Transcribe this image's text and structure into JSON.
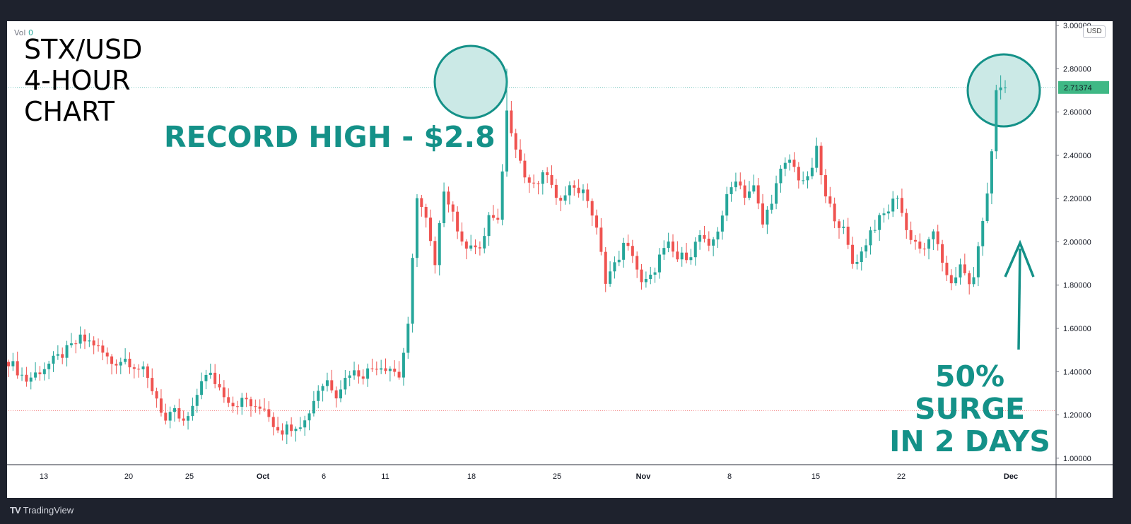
{
  "header": {
    "title_lines": [
      "STX/USD",
      "4-HOUR",
      "CHART"
    ],
    "vol_label": "Vol",
    "vol_value": "0"
  },
  "currency": "USD",
  "annotations": {
    "record_high": "RECORD HIGH - $2.8",
    "surge_line1": "50% SURGE",
    "surge_line2": "IN 2 DAYS"
  },
  "branding": {
    "logo": "TV",
    "name": "TradingView"
  },
  "colors": {
    "up": "#26a69a",
    "down": "#ef5350",
    "accent": "#149188",
    "last_price_bg": "#3fb885",
    "circle_fill": "#cbe9e6"
  },
  "chart_data": {
    "type": "candlestick",
    "yaxis": {
      "ticks": [
        "1.00000",
        "1.20000",
        "1.40000",
        "1.60000",
        "1.80000",
        "2.00000",
        "2.20000",
        "2.40000",
        "2.60000",
        "2.80000",
        "3.00000"
      ],
      "range": [
        0.97,
        3.02
      ]
    },
    "xaxis": {
      "ticks": [
        "13",
        "20",
        "25",
        "Oct",
        "6",
        "11",
        "18",
        "25",
        "Nov",
        "8",
        "15",
        "22",
        "Dec"
      ]
    },
    "last_price": "2.71374",
    "reference_line": 1.22,
    "path": [
      [
        0,
        1.45
      ],
      [
        4,
        1.36
      ],
      [
        8,
        1.42
      ],
      [
        12,
        1.48
      ],
      [
        16,
        1.55
      ],
      [
        19,
        1.53
      ],
      [
        23,
        1.44
      ],
      [
        26,
        1.46
      ],
      [
        30,
        1.4
      ],
      [
        33,
        1.28
      ],
      [
        35,
        1.17
      ],
      [
        37,
        1.21
      ],
      [
        39,
        1.16
      ],
      [
        41,
        1.22
      ],
      [
        43,
        1.37
      ],
      [
        45,
        1.38
      ],
      [
        48,
        1.3
      ],
      [
        50,
        1.25
      ],
      [
        53,
        1.27
      ],
      [
        55,
        1.22
      ],
      [
        57,
        1.24
      ],
      [
        59,
        1.16
      ],
      [
        61,
        1.13
      ],
      [
        63,
        1.15
      ],
      [
        66,
        1.17
      ],
      [
        69,
        1.32
      ],
      [
        71,
        1.36
      ],
      [
        73,
        1.3
      ],
      [
        76,
        1.4
      ],
      [
        79,
        1.39
      ],
      [
        82,
        1.43
      ],
      [
        85,
        1.42
      ],
      [
        87,
        1.38
      ],
      [
        89,
        1.6
      ],
      [
        91,
        2.22
      ],
      [
        93,
        2.1
      ],
      [
        95,
        1.88
      ],
      [
        97,
        2.25
      ],
      [
        99,
        2.14
      ],
      [
        101,
        1.98
      ],
      [
        103,
        2.0
      ],
      [
        105,
        1.95
      ],
      [
        107,
        2.12
      ],
      [
        109,
        2.08
      ],
      [
        111,
        2.6
      ],
      [
        113,
        2.45
      ],
      [
        115,
        2.3
      ],
      [
        117,
        2.25
      ],
      [
        120,
        2.32
      ],
      [
        122,
        2.18
      ],
      [
        124,
        2.24
      ],
      [
        126,
        2.26
      ],
      [
        129,
        2.2
      ],
      [
        131,
        2.05
      ],
      [
        133,
        1.83
      ],
      [
        135,
        1.89
      ],
      [
        137,
        1.98
      ],
      [
        139,
        1.95
      ],
      [
        141,
        1.8
      ],
      [
        143,
        1.83
      ],
      [
        145,
        1.93
      ],
      [
        147,
        1.98
      ],
      [
        149,
        1.92
      ],
      [
        152,
        1.95
      ],
      [
        154,
        2.03
      ],
      [
        156,
        1.96
      ],
      [
        158,
        2.06
      ],
      [
        160,
        2.2
      ],
      [
        162,
        2.3
      ],
      [
        164,
        2.22
      ],
      [
        166,
        2.25
      ],
      [
        168,
        2.08
      ],
      [
        170,
        2.2
      ],
      [
        172,
        2.32
      ],
      [
        174,
        2.38
      ],
      [
        176,
        2.3
      ],
      [
        178,
        2.28
      ],
      [
        180,
        2.42
      ],
      [
        182,
        2.2
      ],
      [
        184,
        2.12
      ],
      [
        186,
        2.05
      ],
      [
        188,
        1.9
      ],
      [
        190,
        1.95
      ],
      [
        192,
        2.05
      ],
      [
        194,
        2.1
      ],
      [
        196,
        2.15
      ],
      [
        198,
        2.22
      ],
      [
        200,
        2.05
      ],
      [
        202,
        2.0
      ],
      [
        204,
        1.95
      ],
      [
        206,
        2.06
      ],
      [
        208,
        1.88
      ],
      [
        210,
        1.82
      ],
      [
        212,
        1.88
      ],
      [
        214,
        1.8
      ],
      [
        215,
        1.85
      ],
      [
        217,
        2.1
      ],
      [
        218.5,
        2.28
      ],
      [
        220,
        2.7
      ],
      [
        221,
        2.71374
      ]
    ]
  }
}
